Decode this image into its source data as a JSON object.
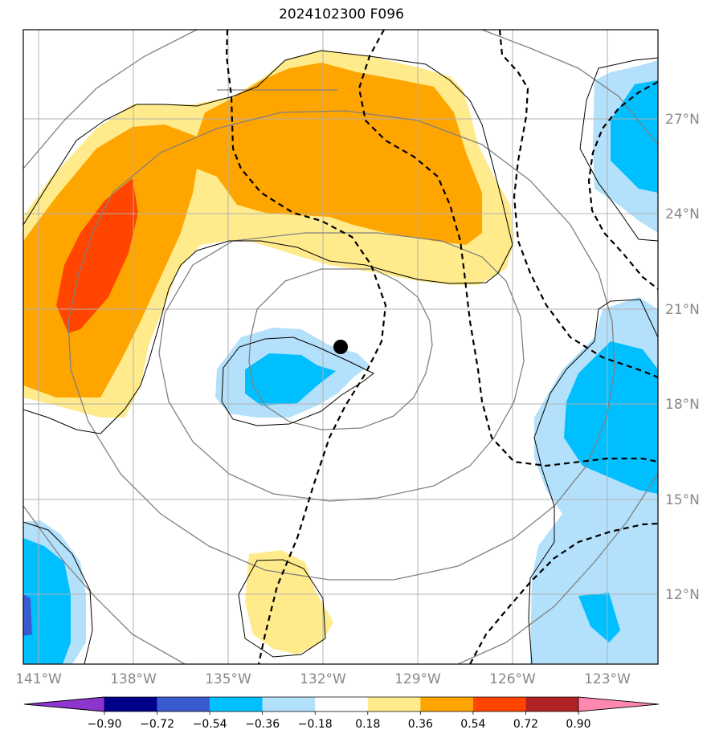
{
  "title": "2024102300 F096",
  "map": {
    "lon_labels": [
      "141°W",
      "138°W",
      "135°W",
      "132°W",
      "129°W",
      "126°W",
      "123°W"
    ],
    "lat_labels": [
      "27°N",
      "24°N",
      "21°N",
      "18°N",
      "15°N",
      "12°N"
    ],
    "storm_marker": "black-dot",
    "colors": {
      "frame": "#000000",
      "grid": "#b0b0b0",
      "contour_gray": "#808080",
      "contour_black": "#000000"
    }
  },
  "colorbar": {
    "colors": [
      "#8e35d0",
      "#00008b",
      "#3a5bd0",
      "#00bfff",
      "#b3e0fa",
      "#ffffff",
      "#ffeb8c",
      "#ffa500",
      "#ff4500",
      "#b22222",
      "#ff88b0"
    ],
    "tick_labels": [
      "−0.90",
      "−0.72",
      "−0.54",
      "−0.36",
      "−0.18",
      "0.18",
      "0.36",
      "0.54",
      "0.72",
      "0.90"
    ]
  }
}
